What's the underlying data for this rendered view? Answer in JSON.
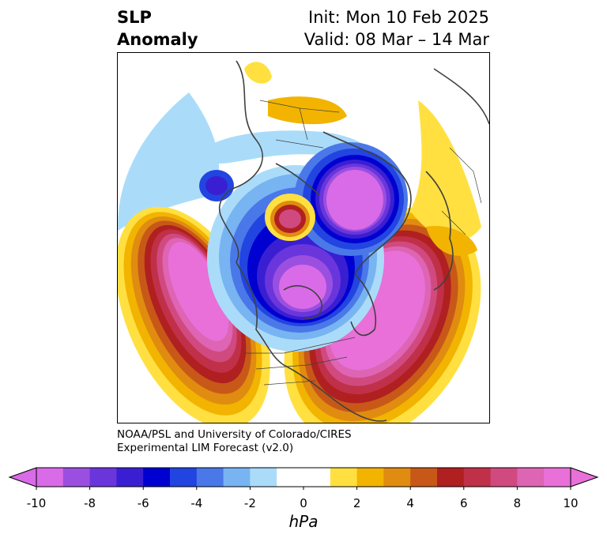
{
  "header": {
    "title_line1": "SLP",
    "title_line2": "Anomaly",
    "init_label": "Init: Mon 10 Feb 2025",
    "valid_label": "Valid: 08 Mar – 14 Mar"
  },
  "credit": {
    "line1": "NOAA/PSL and University of Colorado/CIRES",
    "line2": "Experimental LIM Forecast (v2.0)"
  },
  "colorbar": {
    "unit": "hPa",
    "tick_labels": [
      "-10",
      "-8",
      "-6",
      "-4",
      "-2",
      "0",
      "2",
      "4",
      "6",
      "8",
      "10"
    ],
    "colors": [
      "#d96be8",
      "#9b4fe0",
      "#6a36dc",
      "#3a1fd2",
      "#0000d0",
      "#2244e0",
      "#4a78e8",
      "#78b4f2",
      "#aadcfa",
      "#ffffff",
      "#ffffff",
      "#ffe040",
      "#f2b400",
      "#e08c10",
      "#c85818",
      "#b02020",
      "#c03048",
      "#d04a80",
      "#de64b4",
      "#e870d8"
    ]
  },
  "map": {
    "field": "SLP anomaly",
    "projection": "north-polar-stereographic",
    "features": [
      {
        "name": "negative-center-arctic-siberia",
        "sign": "negative",
        "level": "-10"
      },
      {
        "name": "negative-center-canada-arctic",
        "sign": "negative",
        "level": "-10"
      },
      {
        "name": "negative-center-bering",
        "sign": "negative",
        "level": "-6"
      },
      {
        "name": "positive-center-north-pacific",
        "sign": "positive",
        "level": "10"
      },
      {
        "name": "positive-center-north-atlantic",
        "sign": "positive",
        "level": "10"
      },
      {
        "name": "positive-center-alaska",
        "sign": "positive",
        "level": "8"
      }
    ]
  }
}
